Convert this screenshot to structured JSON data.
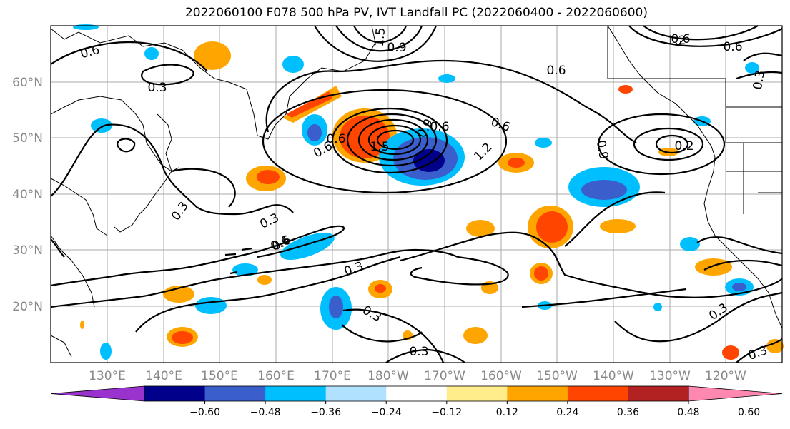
{
  "title": "2022060100 F078 500 hPa PV, IVT Landfall PC (2022060400 - 2022060600)",
  "map": {
    "lat_ticks": [
      "60°N",
      "50°N",
      "40°N",
      "30°N",
      "20°N"
    ],
    "lon_ticks": [
      "130°E",
      "140°E",
      "150°E",
      "160°E",
      "170°E",
      "180°W",
      "170°W",
      "160°W",
      "150°W",
      "140°W",
      "130°W",
      "120°W"
    ],
    "contour_labels": [
      "0.6",
      "0.3",
      "0.6",
      "1.5",
      "0.9",
      "0.9",
      "0.6",
      "0.6",
      "1.2",
      "0.6",
      "0.3",
      "0.6",
      "0.6",
      "0.3",
      "0.6",
      "1.2",
      "1.5",
      "0.6",
      "0.9",
      "0.2",
      "0.3",
      "0.6",
      "0.3",
      "0.3",
      "0.3",
      "0.3",
      "0.3"
    ]
  },
  "colorbar": {
    "colors": [
      "#9a32cd",
      "#00008b",
      "#3a5fcd",
      "#00bfff",
      "#b0e2ff",
      "#ffffff",
      "#ffec8b",
      "#ffa500",
      "#ff4500",
      "#b22222",
      "#ff88b0"
    ],
    "tick_labels": [
      "−0.60",
      "−0.48",
      "−0.36",
      "−0.24",
      "−0.12",
      "0.12",
      "0.24",
      "0.36",
      "0.48",
      "0.60"
    ]
  }
}
